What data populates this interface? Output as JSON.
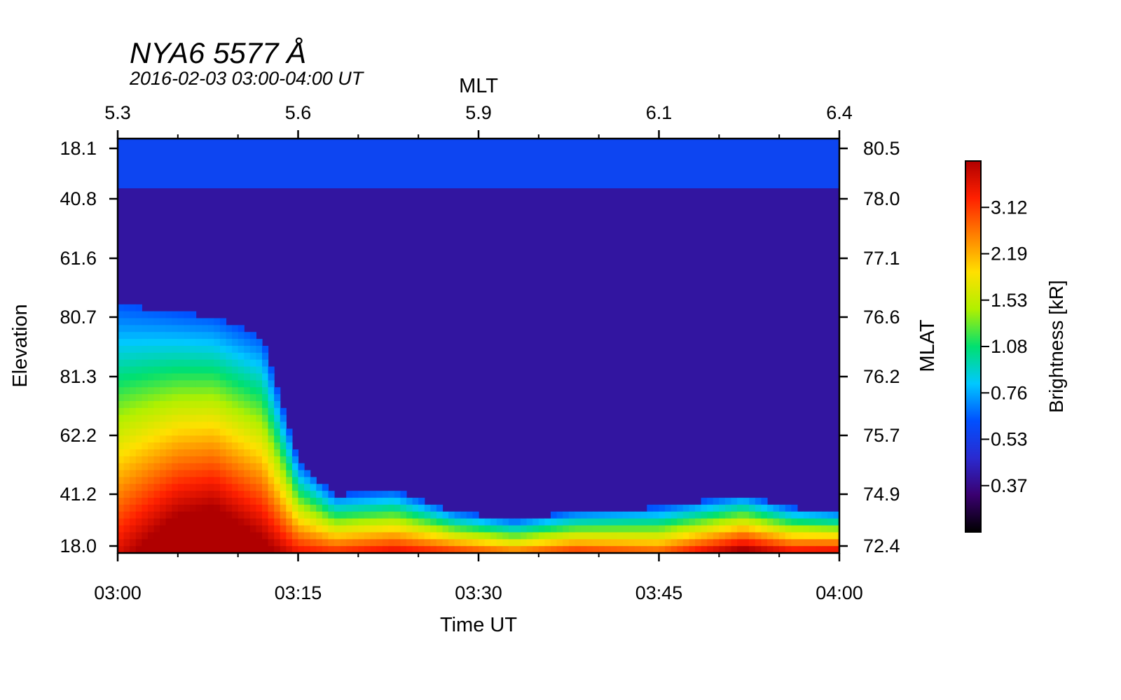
{
  "chart_data": {
    "type": "heatmap",
    "title": "NYA6 5577 Å",
    "subtitle": "2016-02-03 03:00-04:00 UT",
    "xlabel": "Time UT",
    "x_top_label": "MLT",
    "ylabel": "Elevation",
    "y_right_label": "MLAT",
    "colorbar_label": "Brightness [kR]",
    "x_ticks": [
      "03:00",
      "03:15",
      "03:30",
      "03:45",
      "04:00"
    ],
    "x_range": [
      "03:00",
      "04:00"
    ],
    "mlt_ticks": [
      "5.3",
      "5.6",
      "5.9",
      "6.1",
      "6.4"
    ],
    "elevation_ticks": [
      "18.1",
      "40.8",
      "61.6",
      "80.7",
      "81.3",
      "62.2",
      "41.2",
      "18.0"
    ],
    "mlat_ticks": [
      "80.5",
      "78.0",
      "77.1",
      "76.6",
      "76.2",
      "75.7",
      "74.9",
      "72.4"
    ],
    "colorbar_ticks": [
      "3.12",
      "2.19",
      "1.53",
      "1.08",
      "0.76",
      "0.53",
      "0.37"
    ],
    "colormap": [
      "#000000",
      "#3a0070",
      "#2a2ad0",
      "#0050ff",
      "#00c8ff",
      "#00e070",
      "#b0f000",
      "#ffe000",
      "#ff8000",
      "#ff2000",
      "#b00000"
    ],
    "background_level": 0.15,
    "emission_profile": [
      {
        "t": 0,
        "level": 0.6,
        "top": 0.4
      },
      {
        "t": 5,
        "level": 0.78,
        "top": 0.42
      },
      {
        "t": 8,
        "level": 0.82,
        "top": 0.43
      },
      {
        "t": 12,
        "level": 0.7,
        "top": 0.48
      },
      {
        "t": 15,
        "level": 0.58,
        "top": 0.78
      },
      {
        "t": 18,
        "level": 0.55,
        "top": 0.86
      },
      {
        "t": 23,
        "level": 0.6,
        "top": 0.85
      },
      {
        "t": 28,
        "level": 0.55,
        "top": 0.9
      },
      {
        "t": 33,
        "level": 0.48,
        "top": 0.92
      },
      {
        "t": 38,
        "level": 0.55,
        "top": 0.9
      },
      {
        "t": 45,
        "level": 0.5,
        "top": 0.89
      },
      {
        "t": 52,
        "level": 0.7,
        "top": 0.86
      },
      {
        "t": 56,
        "level": 0.6,
        "top": 0.89
      },
      {
        "t": 60,
        "level": 0.62,
        "top": 0.9
      }
    ]
  }
}
